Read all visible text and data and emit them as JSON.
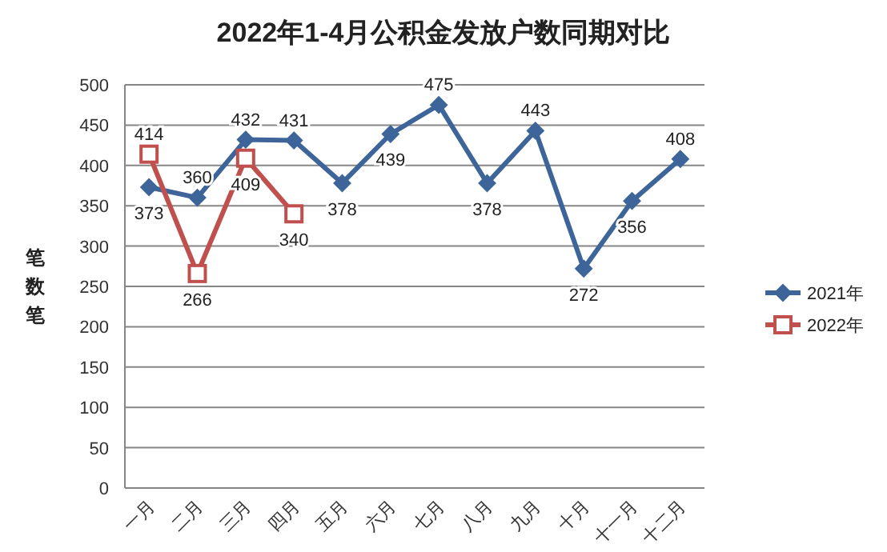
{
  "chart_data": {
    "type": "line",
    "title": "2022年1-4月公积金发放户数同期对比",
    "ylabel": "笔数笔",
    "categories": [
      "一月",
      "二月",
      "三月",
      "四月",
      "五月",
      "六月",
      "七月",
      "八月",
      "九月",
      "十月",
      "十一月",
      "十二月"
    ],
    "series": [
      {
        "name": "2021年",
        "color": "#3d6599",
        "marker": "diamond",
        "values": [
          373,
          360,
          432,
          431,
          378,
          439,
          475,
          378,
          443,
          272,
          356,
          408
        ]
      },
      {
        "name": "2022年",
        "color": "#c0504d",
        "marker": "square",
        "values": [
          414,
          266,
          409,
          340,
          null,
          null,
          null,
          null,
          null,
          null,
          null,
          null
        ]
      }
    ],
    "ylim": [
      0,
      500
    ],
    "yticks": [
      0,
      50,
      100,
      150,
      200,
      250,
      300,
      350,
      400,
      450,
      500
    ],
    "grid": "y",
    "legend": "right",
    "data_labels": true,
    "line_style": "solid"
  }
}
